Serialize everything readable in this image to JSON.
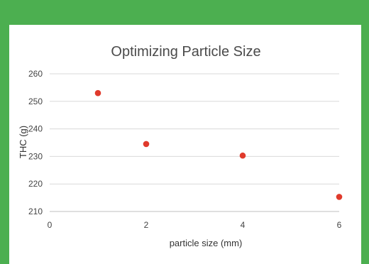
{
  "chart_data": {
    "type": "scatter",
    "title": "Optimizing Particle Size",
    "xlabel": "particle size (mm)",
    "ylabel": "THC (g)",
    "xlim": [
      0,
      6
    ],
    "ylim": [
      210,
      260
    ],
    "xticks": [
      0,
      2,
      4,
      6
    ],
    "yticks": [
      210,
      220,
      230,
      240,
      250,
      260
    ],
    "grid": "horizontal",
    "marker_color": "#e03a2c",
    "series": [
      {
        "x": [
          1,
          2,
          4,
          6
        ],
        "y": [
          253,
          234.5,
          230.3,
          215.3
        ]
      }
    ]
  }
}
